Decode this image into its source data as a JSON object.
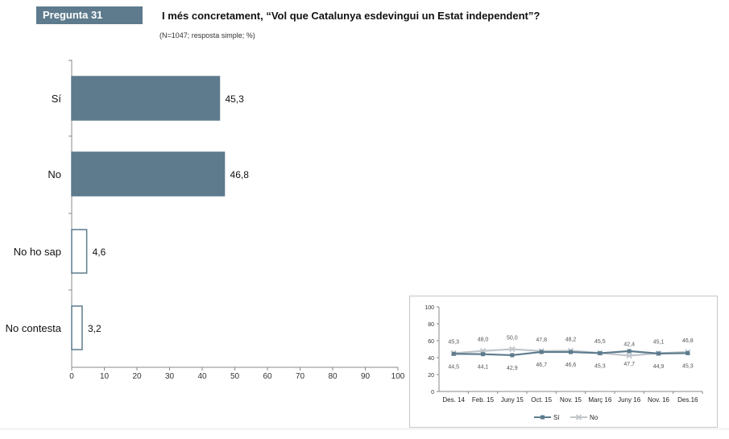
{
  "header": {
    "question_label": "Pregunta 31",
    "title": "I més concretament, “Vol que Catalunya esdevingui un Estat independent”?",
    "subtitle": "(N=1047; resposta simple; %)"
  },
  "chart_data": [
    {
      "type": "bar",
      "orientation": "horizontal",
      "categories": [
        "Sí",
        "No",
        "No ho sap",
        "No contesta"
      ],
      "values": [
        45.3,
        46.8,
        4.6,
        3.2
      ],
      "value_labels": [
        "45,3",
        "46,8",
        "4,6",
        "3,2"
      ],
      "xlim": [
        0,
        100
      ],
      "xticks": [
        "0",
        "10",
        "20",
        "30",
        "40",
        "50",
        "60",
        "70",
        "80",
        "90",
        "100"
      ],
      "colors": [
        "#5d7b8d",
        "#5d7b8d",
        "#ffffff",
        "#ffffff"
      ],
      "edge_color": "#5d7b8d",
      "grid": false
    },
    {
      "type": "line",
      "categories": [
        "Des. 14",
        "Feb. 15",
        "Juny 15",
        "Oct. 15",
        "Nov. 15",
        "Març 16",
        "Juny 16",
        "Nov. 16",
        "Des.16"
      ],
      "ylim": [
        0,
        100
      ],
      "yticks": [
        "0",
        "20",
        "40",
        "60",
        "80",
        "100"
      ],
      "series": [
        {
          "name": "Sí",
          "values": [
            44.5,
            44.1,
            42.9,
            46.7,
            46.6,
            45.3,
            47.7,
            44.9,
            45.3
          ],
          "labels": [
            "44,5",
            "44,1",
            "42,9",
            "46,7",
            "46,6",
            "45,3",
            "47,7",
            "44,9",
            "45,3"
          ],
          "color": "#5d7b8d"
        },
        {
          "name": "No",
          "values": [
            45.3,
            48.0,
            50.0,
            47.8,
            48.2,
            45.5,
            42.4,
            45.1,
            46.8
          ],
          "labels": [
            "45,3",
            "48,0",
            "50,0",
            "47,8",
            "48,2",
            "45,5",
            "42,4",
            "45,1",
            "46,8"
          ],
          "color": "#c0c6ca"
        }
      ],
      "legend_position": "bottom",
      "grid": false
    }
  ]
}
